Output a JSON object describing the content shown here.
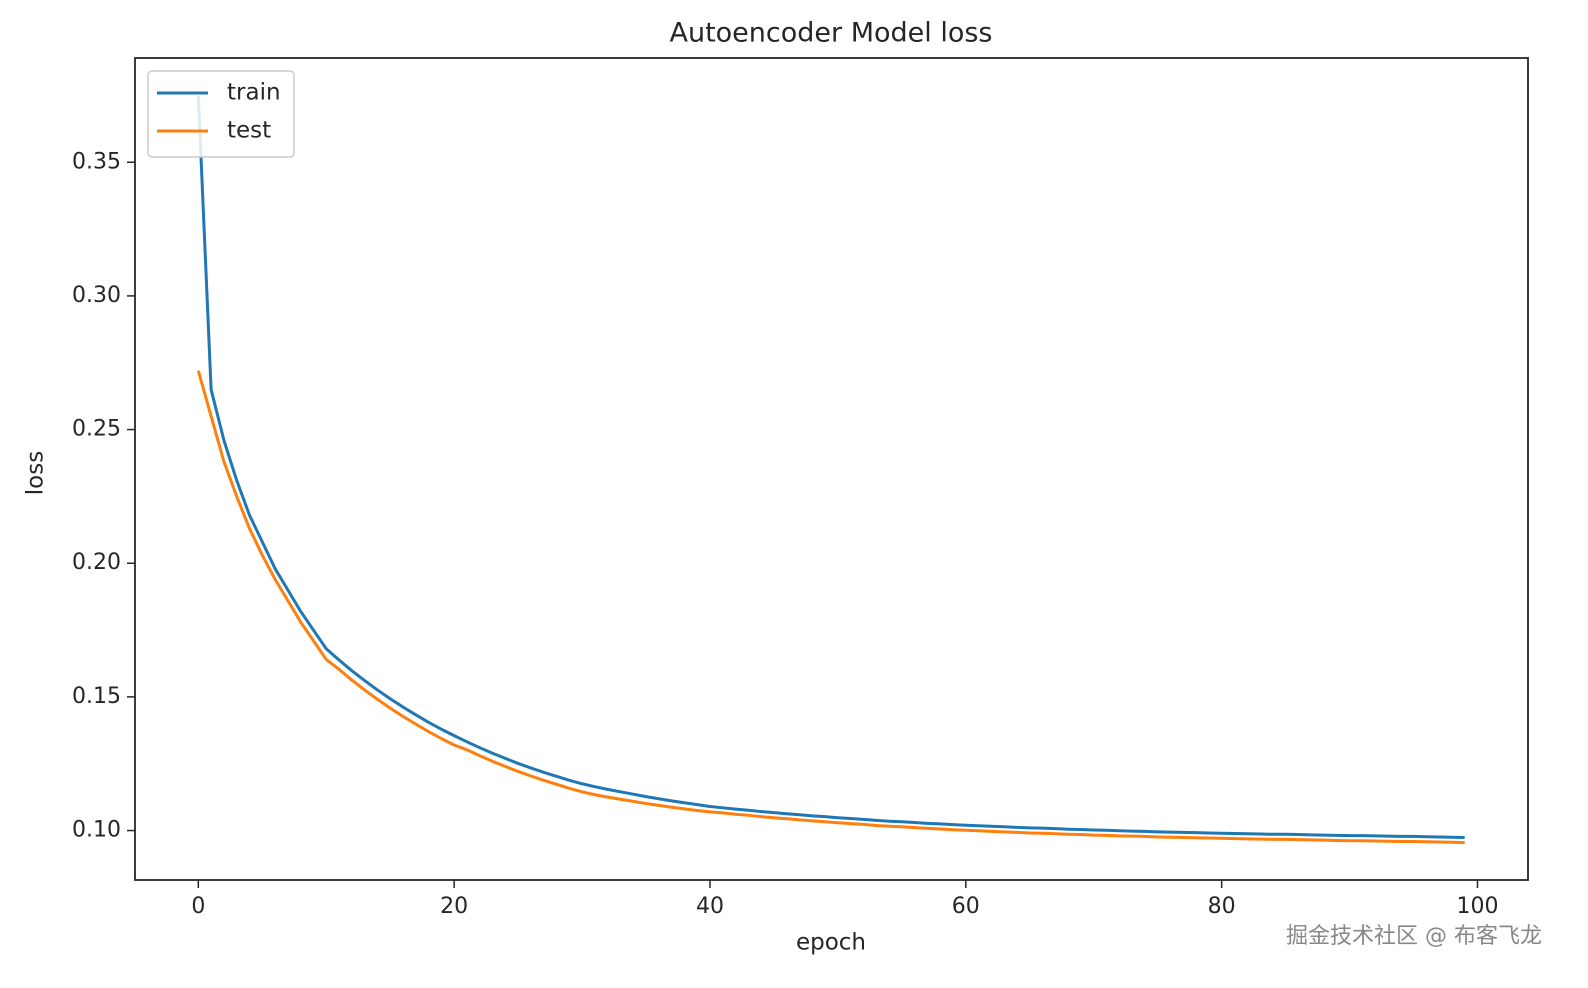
{
  "chart_data": {
    "type": "line",
    "title": "Autoencoder Model loss",
    "xlabel": "epoch",
    "ylabel": "loss",
    "x": [
      0,
      1,
      2,
      3,
      4,
      5,
      6,
      7,
      8,
      9,
      10,
      11,
      12,
      13,
      14,
      15,
      16,
      17,
      18,
      19,
      20,
      21,
      22,
      23,
      24,
      25,
      26,
      27,
      28,
      29,
      30,
      31,
      32,
      33,
      34,
      35,
      36,
      37,
      38,
      39,
      40,
      41,
      42,
      43,
      44,
      45,
      46,
      47,
      48,
      49,
      50,
      51,
      52,
      53,
      54,
      55,
      56,
      57,
      58,
      59,
      60,
      61,
      62,
      63,
      64,
      65,
      66,
      67,
      68,
      69,
      70,
      71,
      72,
      73,
      74,
      75,
      76,
      77,
      78,
      79,
      80,
      81,
      82,
      83,
      84,
      85,
      86,
      87,
      88,
      89,
      90,
      91,
      92,
      93,
      94,
      95,
      96,
      97,
      98,
      99
    ],
    "series": [
      {
        "name": "train",
        "color": "#1f77b4",
        "values": [
          0.375,
          0.265,
          0.246,
          0.231,
          0.218,
          0.208,
          0.198,
          0.19,
          0.182,
          0.175,
          0.168,
          0.1638,
          0.1598,
          0.1561,
          0.1526,
          0.1493,
          0.1462,
          0.1433,
          0.1405,
          0.1379,
          0.1355,
          0.1332,
          0.131,
          0.1289,
          0.127,
          0.1251,
          0.1234,
          0.1218,
          0.1203,
          0.1188,
          0.1175,
          0.1164,
          0.1154,
          0.1145,
          0.1136,
          0.1127,
          0.1119,
          0.1111,
          0.1104,
          0.1097,
          0.109,
          0.1085,
          0.108,
          0.1076,
          0.1071,
          0.1067,
          0.1063,
          0.1059,
          0.1055,
          0.1052,
          0.1048,
          0.1045,
          0.1042,
          0.1038,
          0.1035,
          0.1033,
          0.103,
          0.1027,
          0.1025,
          0.1022,
          0.102,
          0.1018,
          0.1016,
          0.1014,
          0.1012,
          0.101,
          0.1009,
          0.1007,
          0.1005,
          0.1004,
          0.1002,
          0.1001,
          0.0999,
          0.0998,
          0.0997,
          0.0995,
          0.0994,
          0.0993,
          0.0992,
          0.0991,
          0.099,
          0.0989,
          0.0988,
          0.0987,
          0.0986,
          0.0986,
          0.0985,
          0.0984,
          0.0983,
          0.0982,
          0.0981,
          0.0981,
          0.098,
          0.0979,
          0.0978,
          0.0978,
          0.0977,
          0.0976,
          0.0975,
          0.0974
        ]
      },
      {
        "name": "test",
        "color": "#ff7f0e",
        "values": [
          0.272,
          0.255,
          0.238,
          0.225,
          0.213,
          0.203,
          0.194,
          0.186,
          0.178,
          0.171,
          0.164,
          0.1603,
          0.1563,
          0.1526,
          0.1491,
          0.1458,
          0.1427,
          0.1398,
          0.137,
          0.1344,
          0.132,
          0.1302,
          0.128,
          0.1259,
          0.124,
          0.1221,
          0.1204,
          0.1188,
          0.1173,
          0.1158,
          0.1145,
          0.1134,
          0.1125,
          0.1117,
          0.1109,
          0.1101,
          0.1094,
          0.1087,
          0.1081,
          0.1075,
          0.107,
          0.1066,
          0.1061,
          0.1057,
          0.1052,
          0.1048,
          0.1044,
          0.104,
          0.1036,
          0.1033,
          0.1029,
          0.1026,
          0.1023,
          0.1019,
          0.1016,
          0.1014,
          0.1011,
          0.1008,
          0.1006,
          0.1003,
          0.1001,
          0.0999,
          0.0997,
          0.0995,
          0.0993,
          0.0991,
          0.099,
          0.0988,
          0.0986,
          0.0985,
          0.0983,
          0.0982,
          0.098,
          0.0979,
          0.0978,
          0.0976,
          0.0975,
          0.0974,
          0.0973,
          0.0972,
          0.0971,
          0.097,
          0.0969,
          0.0968,
          0.0967,
          0.0967,
          0.0966,
          0.0965,
          0.0964,
          0.0963,
          0.0962,
          0.0962,
          0.0961,
          0.096,
          0.0959,
          0.0959,
          0.0958,
          0.0957,
          0.0956,
          0.0955
        ]
      }
    ],
    "xlim": [
      -4.95,
      103.95
    ],
    "xticks": [
      0,
      20,
      40,
      60,
      80,
      100
    ],
    "ylim": [
      0.0815,
      0.389
    ],
    "yticks": [
      0.1,
      0.15,
      0.2,
      0.25,
      0.3,
      0.35
    ],
    "grid": false,
    "legend": "upper left",
    "watermark": "掘金技术社区 @ 布客飞龙"
  }
}
